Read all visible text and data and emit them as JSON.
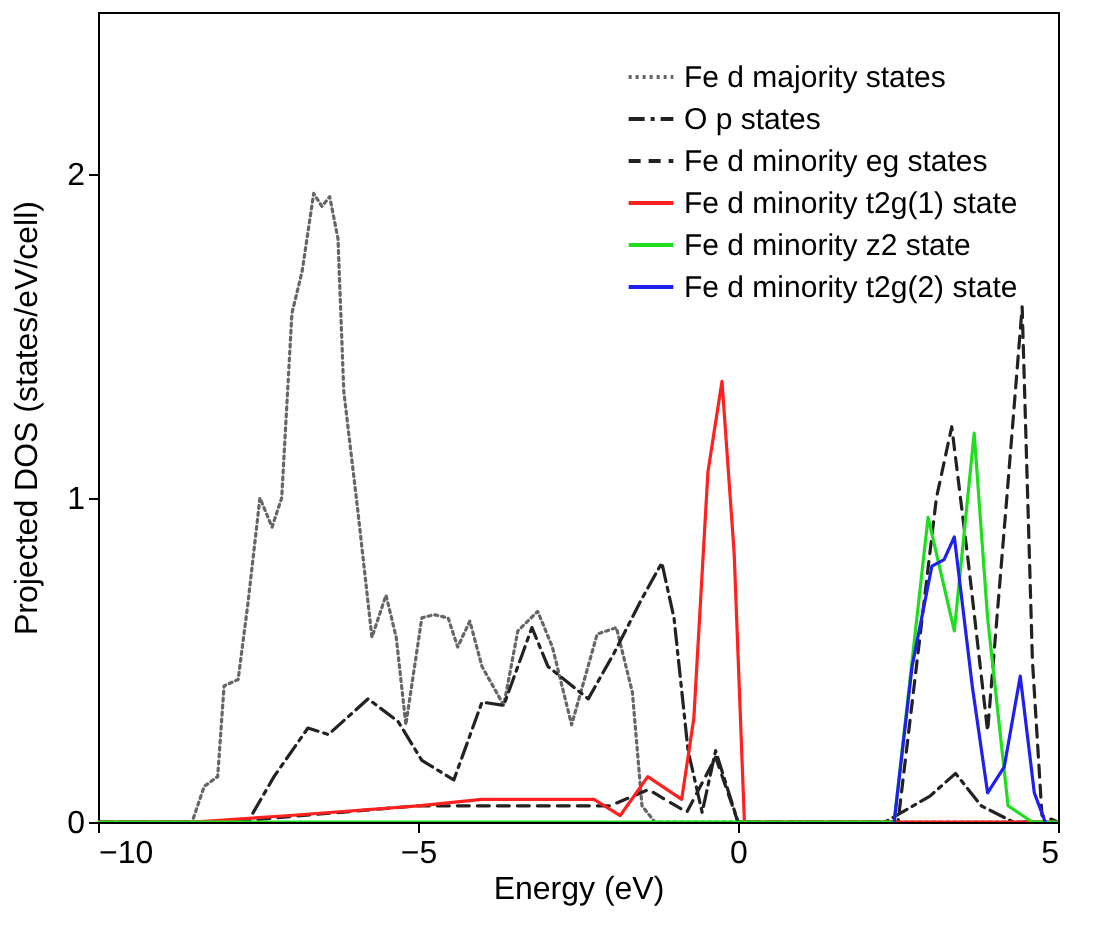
{
  "chart_data": {
    "type": "line",
    "xlabel": "Energy (eV)",
    "ylabel": "Projected DOS (states/eV/cell)",
    "xlim": [
      -10,
      5
    ],
    "ylim": [
      0,
      2.5
    ],
    "xticks": [
      -10,
      -5,
      0,
      5
    ],
    "yticks": [
      0,
      1,
      2
    ],
    "grid": false,
    "legend": "top right",
    "marker": "none",
    "series": [
      {
        "name": "Fe d majority states",
        "color": "#666666",
        "line_style": "dotted",
        "x": [
          -10,
          -8.53,
          -8.34,
          -8.13,
          -8.03,
          -7.81,
          -7.66,
          -7.47,
          -7.28,
          -7.13,
          -6.97,
          -6.81,
          -6.63,
          -6.5,
          -6.38,
          -6.25,
          -6.16,
          -5.94,
          -5.72,
          -5.5,
          -5.34,
          -5.19,
          -4.94,
          -4.75,
          -4.53,
          -4.38,
          -4.19,
          -4.0,
          -3.66,
          -3.44,
          -3.13,
          -2.9,
          -2.6,
          -2.2,
          -1.9,
          -1.65,
          -1.5,
          -1.3,
          5
        ],
        "values": [
          0,
          0,
          0.11,
          0.14,
          0.42,
          0.44,
          0.67,
          1.0,
          0.91,
          1.0,
          1.57,
          1.7,
          1.94,
          1.9,
          1.93,
          1.8,
          1.33,
          0.96,
          0.57,
          0.7,
          0.57,
          0.3,
          0.63,
          0.64,
          0.63,
          0.54,
          0.62,
          0.48,
          0.36,
          0.59,
          0.65,
          0.54,
          0.3,
          0.58,
          0.6,
          0.4,
          0.05,
          0,
          0
        ]
      },
      {
        "name": "O p states",
        "color": "#222222",
        "line_style": "dashdot",
        "x": [
          -10,
          -7.66,
          -7.25,
          -6.72,
          -6.4,
          -5.78,
          -5.31,
          -4.94,
          -4.44,
          -4.0,
          -3.66,
          -3.22,
          -2.97,
          -2.34,
          -1.94,
          -1.5,
          -1.19,
          -1.0,
          -0.78,
          -0.56,
          -0.35,
          0,
          2.3,
          3.0,
          3.4,
          3.8,
          4.3,
          5
        ],
        "values": [
          0,
          0,
          0.14,
          0.29,
          0.27,
          0.38,
          0.31,
          0.19,
          0.13,
          0.37,
          0.36,
          0.6,
          0.48,
          0.38,
          0.52,
          0.69,
          0.8,
          0.63,
          0.22,
          0.03,
          0.22,
          0,
          0,
          0.08,
          0.15,
          0.05,
          0,
          0
        ]
      },
      {
        "name": "Fe d minority eg states",
        "color": "#222222",
        "line_style": "dashed",
        "x": [
          -10,
          -8,
          -5,
          -2,
          -1.4,
          -0.8,
          -0.35,
          0,
          2.5,
          3.1,
          3.34,
          3.6,
          3.9,
          4.2,
          4.44,
          4.6,
          4.75,
          5
        ],
        "values": [
          0,
          0,
          0.05,
          0.05,
          0.1,
          0.03,
          0.2,
          0,
          0,
          1.0,
          1.22,
          0.8,
          0.28,
          1.0,
          1.59,
          0.5,
          0.02,
          0
        ]
      },
      {
        "name": "Fe d minority t2g(1) state",
        "color": "#ff2020",
        "line_style": "solid",
        "x": [
          -10,
          -8.5,
          -7,
          -5,
          -4,
          -3.38,
          -2.25,
          -1.84,
          -1.41,
          -0.88,
          -0.69,
          -0.47,
          -0.25,
          -0.06,
          0.1,
          5
        ],
        "values": [
          0,
          0,
          0.02,
          0.05,
          0.07,
          0.07,
          0.07,
          0.02,
          0.14,
          0.07,
          0.32,
          1.08,
          1.36,
          0.83,
          0,
          0
        ]
      },
      {
        "name": "Fe d minority z2 state",
        "color": "#20dd20",
        "line_style": "solid",
        "x": [
          -10,
          2.44,
          2.97,
          3.38,
          3.69,
          3.9,
          4.22,
          4.6,
          5
        ],
        "values": [
          0,
          0,
          0.94,
          0.59,
          1.2,
          0.63,
          0.05,
          0,
          0
        ]
      },
      {
        "name": "Fe d minority t2g(2) state",
        "color": "#2020ee",
        "line_style": "solid",
        "x": [
          2.44,
          2.72,
          3.03,
          3.22,
          3.38,
          3.66,
          3.9,
          4.16,
          4.41,
          4.63,
          4.8
        ],
        "values": [
          0,
          0.48,
          0.79,
          0.81,
          0.88,
          0.42,
          0.09,
          0.17,
          0.45,
          0.09,
          0
        ]
      }
    ]
  }
}
